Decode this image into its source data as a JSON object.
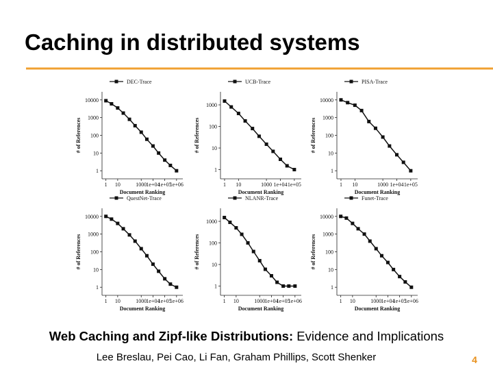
{
  "slide": {
    "title": "Caching in distributed systems",
    "caption_bold": "Web Caching and Zipf-like Distributions:",
    "caption_rest": "Evidence and Implications",
    "authors": "Lee Breslau, Pei Cao, Li Fan, Graham Phillips, Scott Shenker",
    "page_number": "4"
  },
  "chart_data": [
    {
      "type": "line",
      "xlabel": "Document Ranking",
      "ylabel": "# of References",
      "xscale": "log",
      "yscale": "log",
      "xlim": [
        0.8,
        2000000
      ],
      "ylim": [
        0.5,
        20000
      ],
      "xticks": [
        1,
        10,
        1000,
        {
          "value": 10000,
          "label": "1e+04"
        },
        {
          "value": 100000,
          "label": "1e+05"
        },
        {
          "value": 1000000,
          "label": "1e+06"
        }
      ],
      "yticks": [
        1,
        10,
        100,
        1000,
        10000
      ],
      "x": [
        1,
        3,
        10,
        30,
        100,
        300,
        1000,
        3000,
        10000,
        30000,
        100000,
        300000,
        1000000
      ],
      "series": [
        {
          "name": "DEC-Trace",
          "color": "#111111",
          "values": [
            9000,
            6000,
            3500,
            1800,
            800,
            350,
            150,
            60,
            25,
            10,
            4,
            2,
            1
          ]
        }
      ]
    },
    {
      "type": "line",
      "xlabel": "Document Ranking",
      "ylabel": "# of References",
      "xscale": "log",
      "yscale": "log",
      "xlim": [
        0.8,
        200000
      ],
      "ylim": [
        0.5,
        3000
      ],
      "xticks": [
        1,
        10,
        1000,
        {
          "value": 10000,
          "label": "1e+04"
        },
        {
          "value": 100000,
          "label": "1e+05"
        }
      ],
      "yticks": [
        1,
        10,
        100,
        1000
      ],
      "x": [
        1,
        3,
        10,
        30,
        100,
        300,
        1000,
        3000,
        10000,
        30000,
        100000
      ],
      "series": [
        {
          "name": "UCB-Trace",
          "color": "#111111",
          "values": [
            1500,
            800,
            400,
            180,
            80,
            35,
            15,
            7,
            3,
            1.5,
            1
          ]
        }
      ]
    },
    {
      "type": "line",
      "xlabel": "Document Ranking",
      "ylabel": "# of References",
      "xscale": "log",
      "yscale": "log",
      "xlim": [
        0.8,
        200000
      ],
      "ylim": [
        0.5,
        20000
      ],
      "xticks": [
        1,
        10,
        1000,
        {
          "value": 10000,
          "label": "1e+04"
        },
        {
          "value": 100000,
          "label": "1e+05"
        }
      ],
      "yticks": [
        1,
        10,
        100,
        1000,
        10000
      ],
      "x": [
        1,
        3,
        10,
        30,
        100,
        300,
        1000,
        3000,
        10000,
        30000,
        100000
      ],
      "series": [
        {
          "name": "PISA-Trace",
          "color": "#111111",
          "values": [
            10000,
            7000,
            5000,
            2500,
            600,
            250,
            80,
            25,
            8,
            3,
            1
          ]
        }
      ]
    },
    {
      "type": "line",
      "xlabel": "Document Ranking",
      "ylabel": "# of References",
      "xscale": "log",
      "yscale": "log",
      "xlim": [
        0.8,
        2000000
      ],
      "ylim": [
        0.5,
        20000
      ],
      "xticks": [
        1,
        10,
        1000,
        {
          "value": 10000,
          "label": "1e+04"
        },
        {
          "value": 100000,
          "label": "1e+05"
        },
        {
          "value": 1000000,
          "label": "1e+06"
        }
      ],
      "yticks": [
        1,
        10,
        100,
        1000,
        10000
      ],
      "x": [
        1,
        3,
        10,
        30,
        100,
        300,
        1000,
        3000,
        10000,
        30000,
        100000,
        300000,
        1000000
      ],
      "series": [
        {
          "name": "QuestNet-Trace",
          "color": "#111111",
          "values": [
            10000,
            7000,
            4000,
            2000,
            900,
            400,
            150,
            60,
            20,
            8,
            3,
            1.5,
            1
          ]
        }
      ]
    },
    {
      "type": "line",
      "xlabel": "Document Ranking",
      "ylabel": "# of References",
      "xscale": "log",
      "yscale": "log",
      "xlim": [
        0.8,
        2000000
      ],
      "ylim": [
        0.5,
        3000
      ],
      "xticks": [
        1,
        10,
        1000,
        {
          "value": 10000,
          "label": "1e+04"
        },
        {
          "value": 100000,
          "label": "1e+05"
        },
        {
          "value": 1000000,
          "label": "1e+06"
        }
      ],
      "yticks": [
        1,
        10,
        100,
        1000
      ],
      "x": [
        1,
        3,
        10,
        30,
        100,
        300,
        1000,
        3000,
        10000,
        30000,
        100000,
        300000,
        1000000
      ],
      "series": [
        {
          "name": "NLANR-Trace",
          "color": "#111111",
          "values": [
            1500,
            900,
            500,
            250,
            100,
            40,
            15,
            6,
            3,
            1.5,
            1,
            1,
            1
          ]
        }
      ]
    },
    {
      "type": "line",
      "xlabel": "Document Ranking",
      "ylabel": "# of References",
      "xscale": "log",
      "yscale": "log",
      "xlim": [
        0.8,
        2000000
      ],
      "ylim": [
        0.5,
        20000
      ],
      "xticks": [
        1,
        10,
        1000,
        {
          "value": 10000,
          "label": "1e+04"
        },
        {
          "value": 100000,
          "label": "1e+05"
        },
        {
          "value": 1000000,
          "label": "1e+06"
        }
      ],
      "yticks": [
        1,
        10,
        100,
        1000,
        10000
      ],
      "x": [
        1,
        3,
        10,
        30,
        100,
        300,
        1000,
        3000,
        10000,
        30000,
        100000,
        300000,
        1000000
      ],
      "series": [
        {
          "name": "Funet-Trace",
          "color": "#111111",
          "values": [
            10000,
            8000,
            4000,
            2000,
            1000,
            400,
            150,
            60,
            25,
            10,
            4,
            2,
            1
          ]
        }
      ]
    }
  ]
}
